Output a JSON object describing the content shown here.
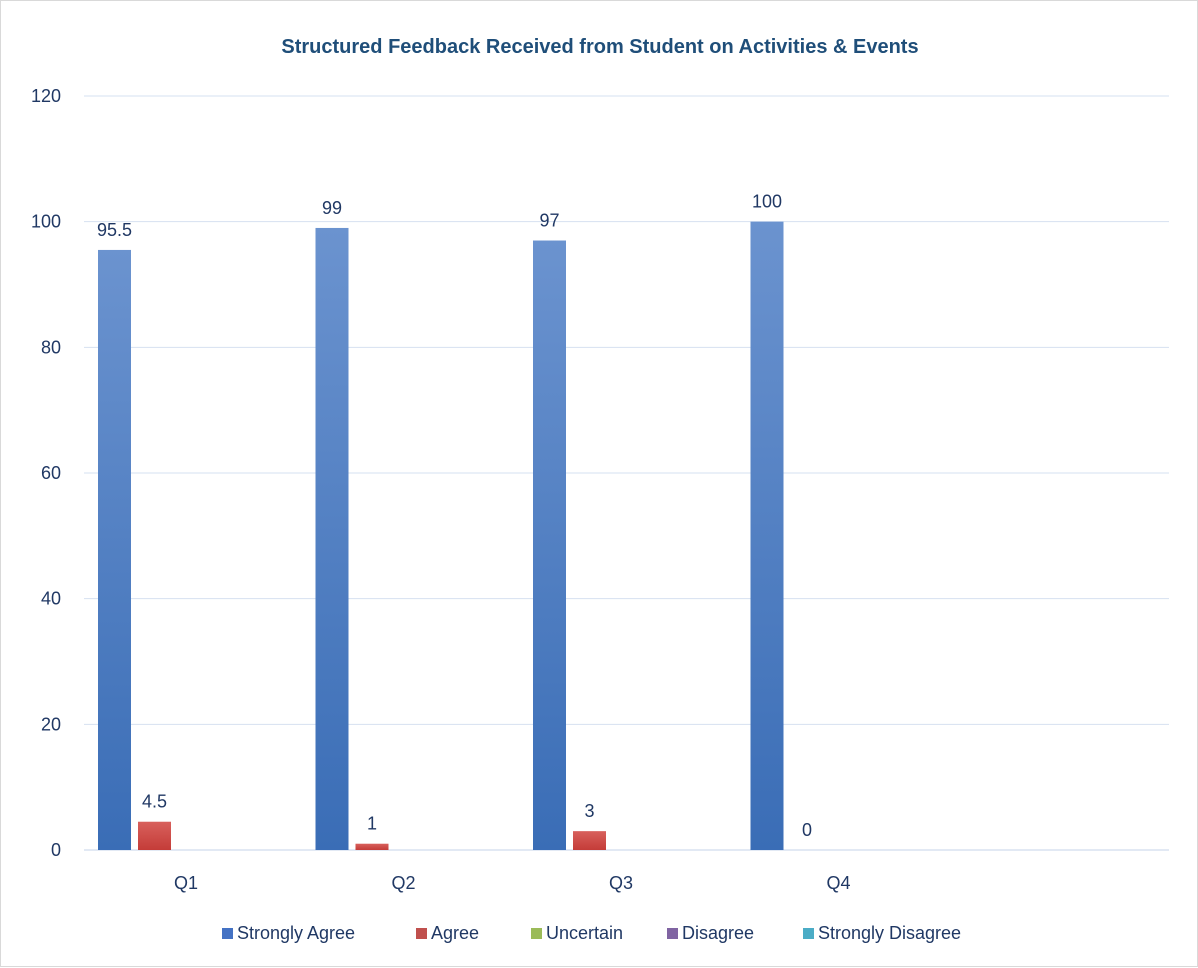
{
  "chart_data": {
    "type": "bar",
    "title": "Structured Feedback Received from Student on Activities & Events",
    "xlabel": "",
    "ylabel": "",
    "categories": [
      "Q1",
      "Q2",
      "Q3",
      "Q4"
    ],
    "ylim": [
      0,
      120
    ],
    "yticks": [
      0,
      20,
      40,
      60,
      80,
      100,
      120
    ],
    "grid": true,
    "legend_position": "bottom",
    "series": [
      {
        "name": "Strongly Agree",
        "color": "#4472c4",
        "values": [
          95.5,
          99,
          97,
          100
        ],
        "labels": [
          "95.5",
          "99",
          "97",
          "100"
        ]
      },
      {
        "name": "Agree",
        "color": "#c0504d",
        "values": [
          4.5,
          1,
          3,
          0
        ],
        "labels": [
          "4.5",
          "1",
          "3",
          "0"
        ]
      },
      {
        "name": "Uncertain",
        "color": "#9bbb59",
        "values": [
          null,
          null,
          null,
          null
        ],
        "labels": [
          "",
          "",
          "",
          ""
        ]
      },
      {
        "name": "Disagree",
        "color": "#8064a2",
        "values": [
          null,
          null,
          null,
          null
        ],
        "labels": [
          "",
          "",
          "",
          ""
        ]
      },
      {
        "name": "Strongly Disagree",
        "color": "#4bacc6",
        "values": [
          null,
          null,
          null,
          null
        ],
        "labels": [
          "",
          "",
          "",
          ""
        ]
      }
    ]
  }
}
